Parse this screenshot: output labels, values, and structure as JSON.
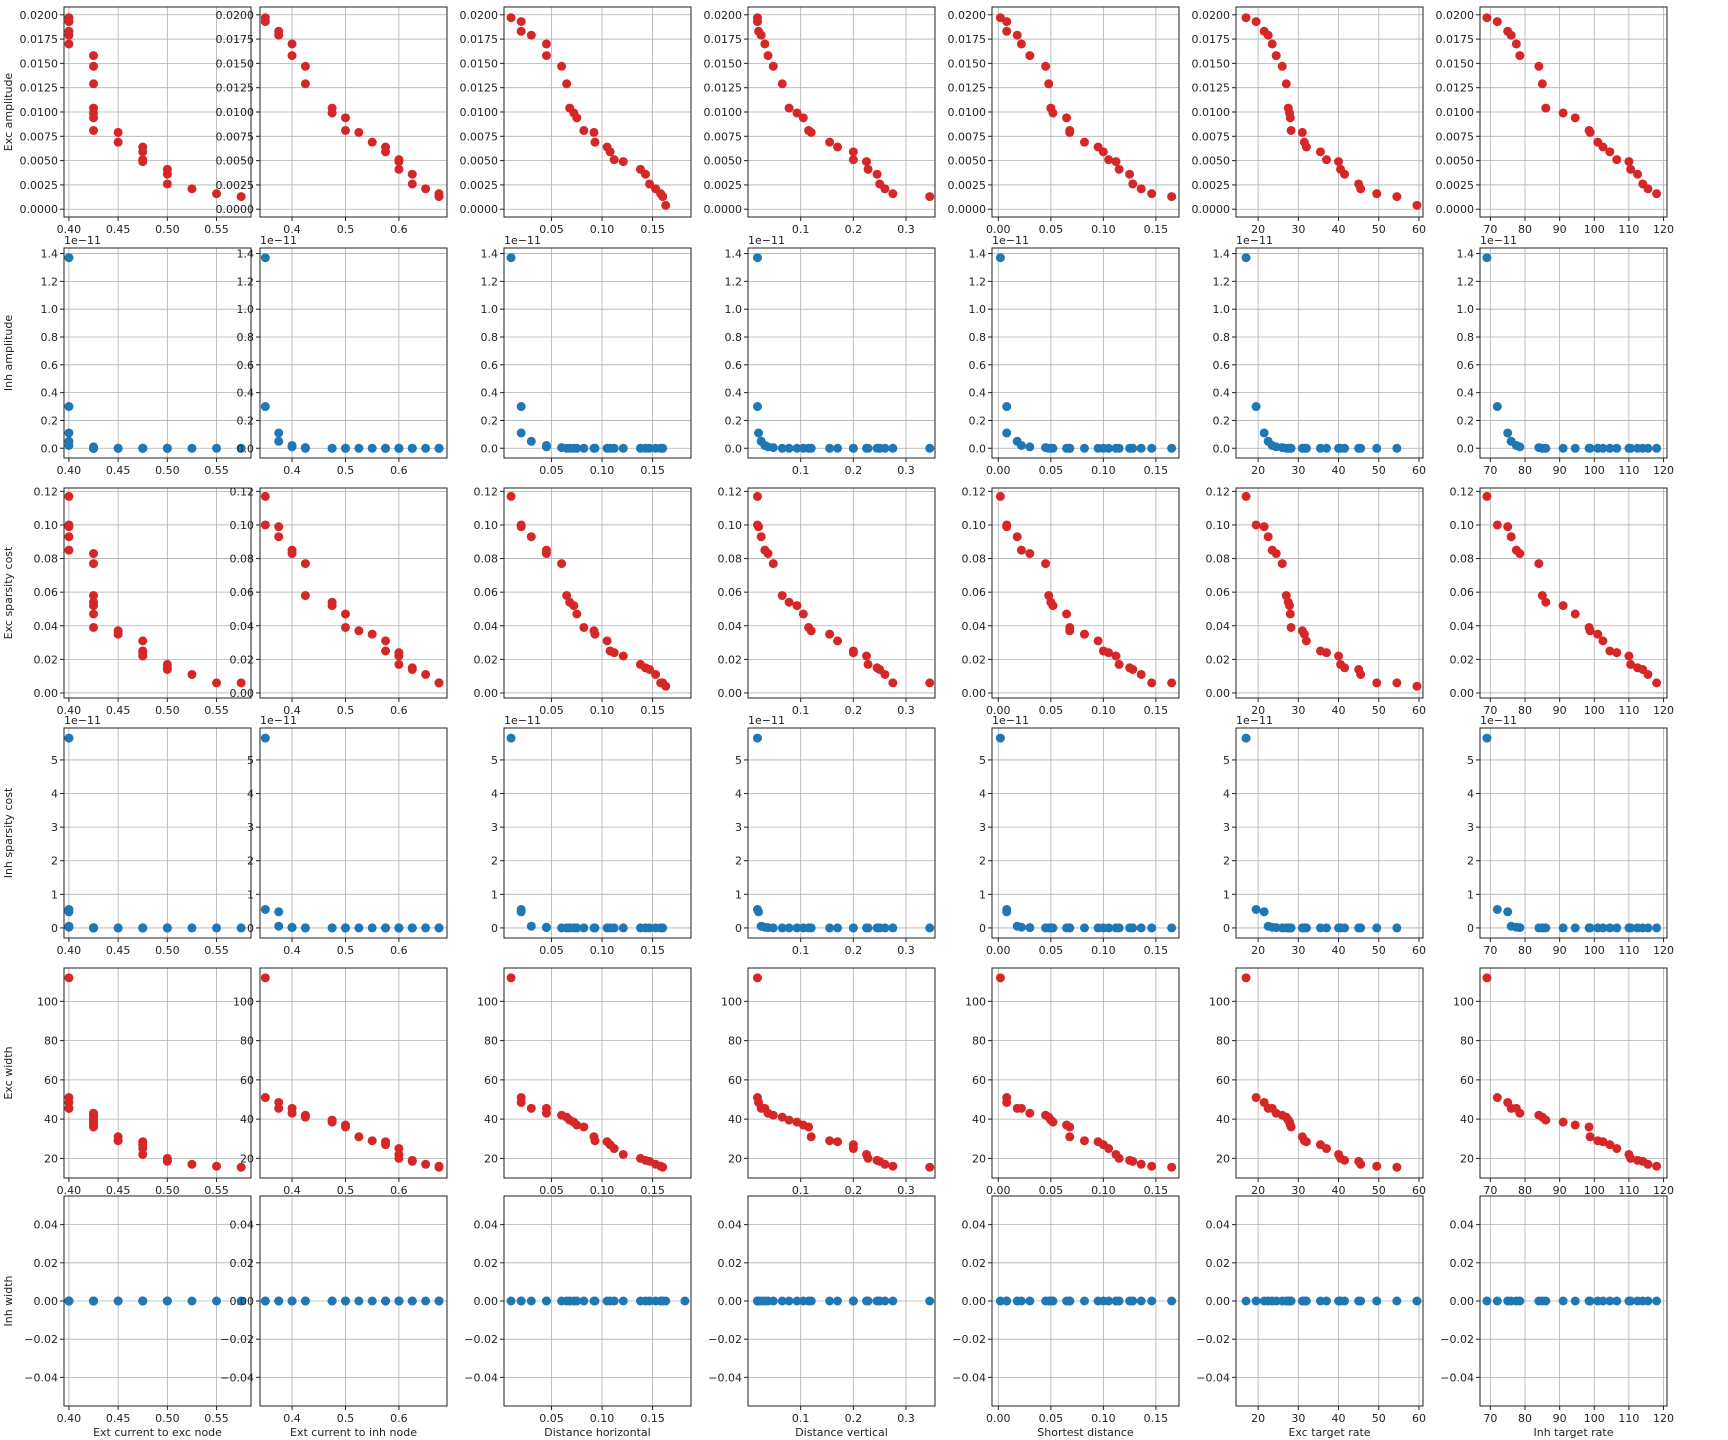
{
  "chart_data": {
    "type": "scatter",
    "layout": "scatter-matrix",
    "grid": true,
    "colors": {
      "exc": "#d62728",
      "inh": "#1f77b4",
      "grid": "#b0b0b0",
      "spine": "#222222"
    },
    "columns": [
      {
        "label": "Ext current to exc node",
        "xlim": [
          0.395,
          0.585
        ],
        "ticks": [
          0.4,
          0.45,
          0.5,
          0.55
        ],
        "tick_labels": [
          "0.40",
          "0.45",
          "0.50",
          "0.55"
        ],
        "x": [
          0.4,
          0.4,
          0.4,
          0.4,
          0.4,
          0.425,
          0.425,
          0.425,
          0.425,
          0.425,
          0.425,
          0.425,
          0.45,
          0.45,
          0.475,
          0.475,
          0.475,
          0.475,
          0.5,
          0.5,
          0.5,
          0.525,
          0.55,
          0.575
        ]
      },
      {
        "label": "Ext current to inh node",
        "xlim": [
          0.34,
          0.69
        ],
        "ticks": [
          0.4,
          0.5,
          0.6
        ],
        "tick_labels": [
          "0.4",
          "0.5",
          "0.6"
        ],
        "x": [
          0.35,
          0.35,
          0.375,
          0.375,
          0.4,
          0.4,
          0.425,
          0.425,
          0.475,
          0.475,
          0.5,
          0.5,
          0.525,
          0.55,
          0.575,
          0.575,
          0.6,
          0.6,
          0.6,
          0.625,
          0.625,
          0.65,
          0.675,
          0.675
        ]
      },
      {
        "label": "Distance horizontal",
        "xlim": [
          0.003,
          0.188
        ],
        "ticks": [
          0.05,
          0.1,
          0.15
        ],
        "tick_labels": [
          "0.05",
          "0.10",
          "0.15"
        ],
        "x": [
          0.01,
          0.02,
          0.02,
          0.03,
          0.045,
          0.045,
          0.06,
          0.065,
          0.068,
          0.072,
          0.075,
          0.082,
          0.092,
          0.093,
          0.105,
          0.108,
          0.112,
          0.121,
          0.138,
          0.143,
          0.147,
          0.153,
          0.158,
          0.16,
          0.163,
          0.182
        ]
      },
      {
        "label": "Distance vertical",
        "xlim": [
          0.0,
          0.355
        ],
        "ticks": [
          0.1,
          0.2,
          0.3
        ],
        "tick_labels": [
          "0.1",
          "0.2",
          "0.3"
        ],
        "x": [
          0.018,
          0.018,
          0.02,
          0.025,
          0.032,
          0.038,
          0.048,
          0.065,
          0.078,
          0.093,
          0.105,
          0.115,
          0.12,
          0.155,
          0.17,
          0.2,
          0.2,
          0.225,
          0.228,
          0.245,
          0.25,
          0.26,
          0.275,
          0.345
        ]
      },
      {
        "label": "Shortest distance",
        "xlim": [
          -0.006,
          0.172
        ],
        "ticks": [
          0.0,
          0.05,
          0.1,
          0.15
        ],
        "tick_labels": [
          "0.00",
          "0.05",
          "0.10",
          "0.15"
        ],
        "x": [
          0.002,
          0.008,
          0.008,
          0.018,
          0.022,
          0.03,
          0.045,
          0.048,
          0.05,
          0.052,
          0.065,
          0.068,
          0.068,
          0.082,
          0.095,
          0.1,
          0.105,
          0.112,
          0.115,
          0.125,
          0.128,
          0.136,
          0.146,
          0.165
        ]
      },
      {
        "label": "Exc target rate",
        "xlim": [
          14.5,
          61.0
        ],
        "ticks": [
          20,
          30,
          40,
          50,
          60
        ],
        "tick_labels": [
          "20",
          "30",
          "40",
          "50",
          "60"
        ],
        "x": [
          17.0,
          19.5,
          21.5,
          22.5,
          23.5,
          24.5,
          26.0,
          27.0,
          27.5,
          27.8,
          28.0,
          28.2,
          31.0,
          31.5,
          32.0,
          35.5,
          37.0,
          40.0,
          40.5,
          41.5,
          45.0,
          45.5,
          49.5,
          54.5,
          59.5
        ]
      },
      {
        "label": "Inh target rate",
        "xlim": [
          67.0,
          121.0
        ],
        "ticks": [
          70,
          80,
          90,
          100,
          110,
          120
        ],
        "tick_labels": [
          "70",
          "80",
          "90",
          "100",
          "110",
          "120"
        ],
        "x": [
          69.0,
          72.0,
          75.0,
          76.0,
          77.5,
          78.5,
          84.0,
          85.0,
          86.0,
          91.0,
          94.5,
          98.5,
          98.8,
          101.0,
          102.5,
          104.5,
          106.5,
          110.0,
          110.5,
          112.5,
          114.0,
          115.5,
          118.0
        ]
      }
    ],
    "rows": [
      {
        "label": "Exc amplitude",
        "series": "exc",
        "ylim": [
          -0.0008,
          0.0208
        ],
        "ticks": [
          0.0,
          0.0025,
          0.005,
          0.0075,
          0.01,
          0.0125,
          0.015,
          0.0175,
          0.02
        ],
        "tick_labels": [
          "0.0000",
          "0.0025",
          "0.0050",
          "0.0075",
          "0.0100",
          "0.0125",
          "0.0150",
          "0.0175",
          "0.0200"
        ],
        "offset": "",
        "y": [
          0.0197,
          0.0193,
          0.0183,
          0.0179,
          0.017,
          0.0158,
          0.0147,
          0.0129,
          0.0104,
          0.0099,
          0.0094,
          0.0081,
          0.0079,
          0.0069,
          0.0064,
          0.0059,
          0.0051,
          0.0049,
          0.0041,
          0.0036,
          0.0026,
          0.0021,
          0.0016,
          0.0013,
          0.0004
        ]
      },
      {
        "label": "Inh amplitude",
        "series": "inh",
        "ylim": [
          -0.07,
          1.44
        ],
        "ticks": [
          0.0,
          0.2,
          0.4,
          0.6,
          0.8,
          1.0,
          1.2,
          1.4
        ],
        "tick_labels": [
          "0.0",
          "0.2",
          "0.4",
          "0.6",
          "0.8",
          "1.0",
          "1.2",
          "1.4"
        ],
        "offset": "1e−11",
        "y": [
          1.37,
          0.3,
          0.11,
          0.05,
          0.02,
          0.01,
          0.005,
          0.0,
          0.0,
          0.0,
          0.0,
          0.0,
          0.0,
          0.0,
          0.0,
          0.0,
          0.0,
          0.0,
          0.0,
          0.0,
          0.0,
          0.0,
          0.0,
          0.0
        ]
      },
      {
        "label": "Exc sparsity cost",
        "series": "exc",
        "ylim": [
          -0.003,
          0.122
        ],
        "ticks": [
          0.0,
          0.02,
          0.04,
          0.06,
          0.08,
          0.1,
          0.12
        ],
        "tick_labels": [
          "0.00",
          "0.02",
          "0.04",
          "0.06",
          "0.08",
          "0.10",
          "0.12"
        ],
        "offset": "",
        "y": [
          0.117,
          0.1,
          0.099,
          0.093,
          0.085,
          0.083,
          0.077,
          0.058,
          0.054,
          0.052,
          0.047,
          0.039,
          0.037,
          0.035,
          0.031,
          0.025,
          0.024,
          0.022,
          0.017,
          0.015,
          0.014,
          0.011,
          0.006,
          0.006,
          0.004
        ]
      },
      {
        "label": "Inh sparsity cost",
        "series": "inh",
        "ylim": [
          -0.3,
          5.95
        ],
        "ticks": [
          0,
          1,
          2,
          3,
          4,
          5
        ],
        "tick_labels": [
          "0",
          "1",
          "2",
          "3",
          "4",
          "5"
        ],
        "offset": "1e−11",
        "y": [
          5.65,
          0.55,
          0.48,
          0.05,
          0.02,
          0.01,
          0.0,
          0.0,
          0.0,
          0.0,
          0.0,
          0.0,
          0.0,
          0.0,
          0.0,
          0.0,
          0.0,
          0.0,
          0.0,
          0.0,
          0.0,
          0.0,
          0.0,
          0.0
        ]
      },
      {
        "label": "Exc width",
        "series": "exc",
        "ylim": [
          10.0,
          117.0
        ],
        "ticks": [
          20,
          40,
          60,
          80,
          100
        ],
        "tick_labels": [
          "20",
          "40",
          "60",
          "80",
          "100"
        ],
        "offset": "",
        "y": [
          112.0,
          51.0,
          48.5,
          45.5,
          45.5,
          43.0,
          42.0,
          41.0,
          39.5,
          38.5,
          37.0,
          36.0,
          31.0,
          29.0,
          28.5,
          27.0,
          25.0,
          22.0,
          20.0,
          19.0,
          18.5,
          17.0,
          16.0,
          15.5
        ]
      },
      {
        "label": "Inh width",
        "series": "inh",
        "ylim": [
          -0.055,
          0.055
        ],
        "ticks": [
          -0.04,
          -0.02,
          0.0,
          0.02,
          0.04
        ],
        "tick_labels": [
          "−0.04",
          "−0.02",
          "0.00",
          "0.02",
          "0.04"
        ],
        "offset": "",
        "y": [
          0,
          0,
          0,
          0,
          0,
          0,
          0,
          0,
          0,
          0,
          0,
          0,
          0,
          0,
          0,
          0,
          0,
          0,
          0,
          0,
          0,
          0,
          0,
          0,
          0,
          0
        ]
      }
    ]
  }
}
